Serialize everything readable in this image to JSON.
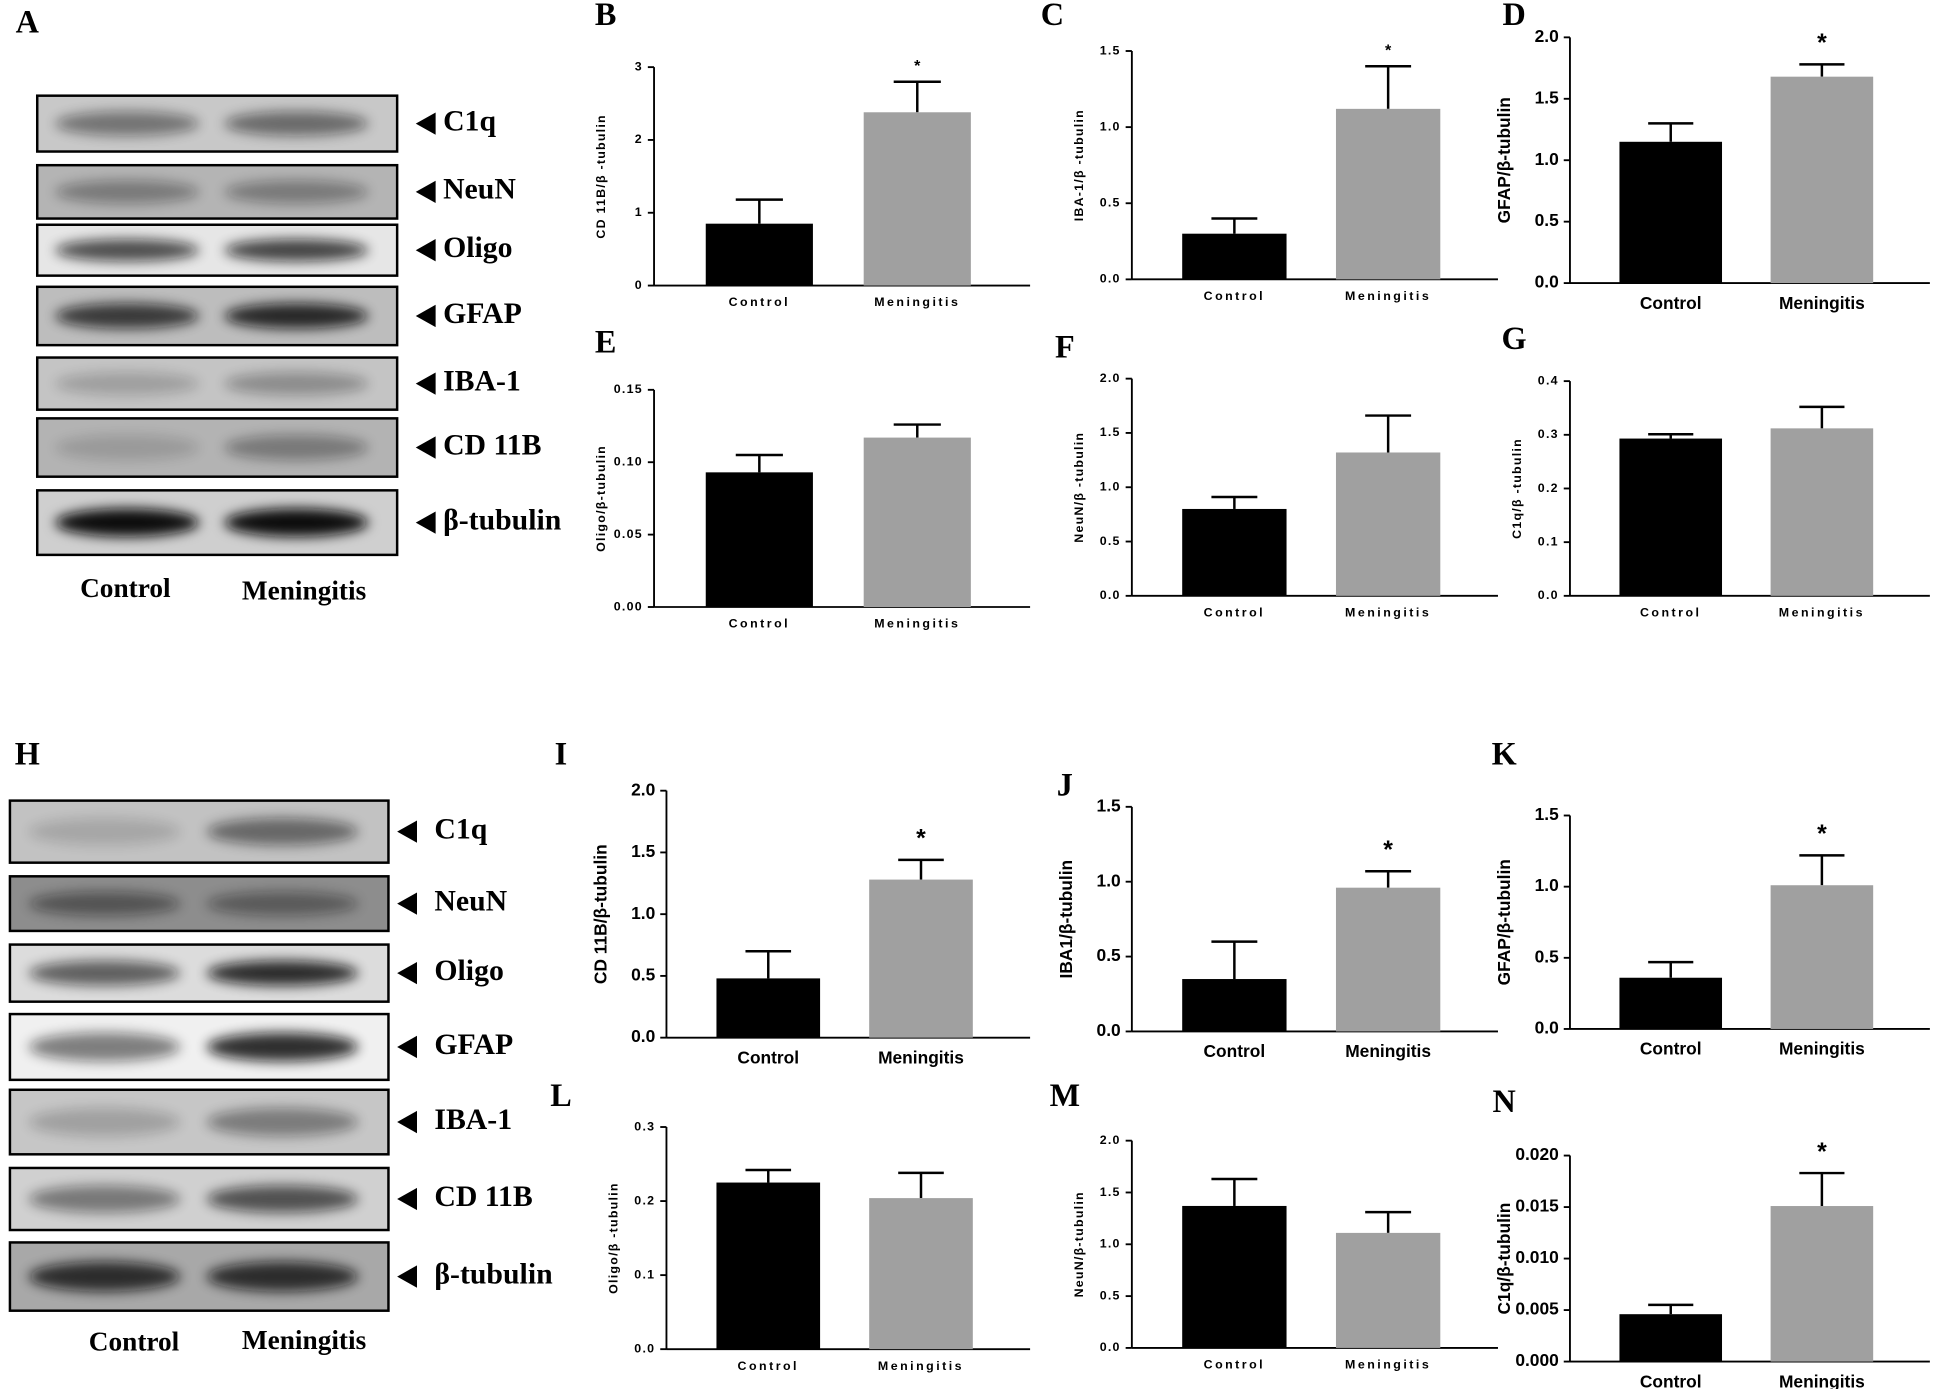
{
  "blots": [
    {
      "label": "A",
      "bands": [
        "C1q",
        "NeuN",
        "Oligo",
        "GFAP",
        "IBA-1",
        "CD 11B",
        "β-tubulin"
      ],
      "lanes": [
        "Control",
        "Meningitis"
      ]
    },
    {
      "label": "H",
      "bands": [
        "C1q",
        "NeuN",
        "Oligo",
        "GFAP",
        "IBA-1",
        "CD 11B",
        "β-tubulin"
      ],
      "lanes": [
        "Control",
        "Meningitis"
      ]
    }
  ],
  "chart_data": [
    {
      "type": "bar",
      "label": "B",
      "ylabel": "CD 11B/β -tubulin",
      "categories": [
        "Control",
        "Meningitis"
      ],
      "values": [
        0.85,
        2.38
      ],
      "errors": [
        0.33,
        0.42
      ],
      "value_annotations": [
        null,
        "*"
      ],
      "colors": [
        "#000000",
        "#a0a0a0"
      ],
      "ylim": [
        0,
        3
      ],
      "yticks": [
        0,
        1,
        2,
        3
      ]
    },
    {
      "type": "bar",
      "label": "C",
      "ylabel": "IBA-1/β -tubulin",
      "categories": [
        "Control",
        "Meningitis"
      ],
      "values": [
        0.3,
        1.12
      ],
      "errors": [
        0.1,
        0.28
      ],
      "value_annotations": [
        null,
        "*"
      ],
      "colors": [
        "#000000",
        "#a0a0a0"
      ],
      "ylim": [
        0,
        1.5
      ],
      "yticks": [
        {
          "value": 0,
          "label": "0.0"
        },
        0.5,
        {
          "value": 1,
          "label": "1.0"
        },
        1.5
      ]
    },
    {
      "type": "bar",
      "label": "D",
      "ylabel": "GFAP/β-tubulin",
      "categories": [
        "Control",
        "Meningitis"
      ],
      "values": [
        1.15,
        1.68
      ],
      "errors": [
        0.15,
        0.1
      ],
      "value_annotations": [
        null,
        "*"
      ],
      "colors": [
        "#000000",
        "#a0a0a0"
      ],
      "ylim": [
        0,
        2
      ],
      "yticks": [
        {
          "value": 0,
          "label": "0.0"
        },
        0.5,
        {
          "value": 1,
          "label": "1.0"
        },
        1.5,
        {
          "value": 2,
          "label": "2.0"
        }
      ]
    },
    {
      "type": "bar",
      "label": "E",
      "ylabel": "Oligo/β-tubulin",
      "categories": [
        "Control",
        "Meningitis"
      ],
      "values": [
        0.093,
        0.117
      ],
      "errors": [
        0.012,
        0.009
      ],
      "colors": [
        "#000000",
        "#a0a0a0"
      ],
      "ylim": [
        0,
        0.15
      ],
      "yticks": [
        {
          "value": 0,
          "label": "0.00"
        },
        0.05,
        {
          "value": 0.1,
          "label": "0.10"
        },
        0.15
      ]
    },
    {
      "type": "bar",
      "label": "F",
      "ylabel": "NeuN/β -tubulin",
      "categories": [
        "Control",
        "Meningitis"
      ],
      "values": [
        0.8,
        1.32
      ],
      "errors": [
        0.11,
        0.34
      ],
      "colors": [
        "#000000",
        "#a0a0a0"
      ],
      "ylim": [
        0,
        2
      ],
      "yticks": [
        {
          "value": 0,
          "label": "0.0"
        },
        0.5,
        {
          "value": 1,
          "label": "1.0"
        },
        1.5,
        {
          "value": 2,
          "label": "2.0"
        }
      ]
    },
    {
      "type": "bar",
      "label": "G",
      "ylabel": "C1q/β -tubulin",
      "categories": [
        "Control",
        "Meningitis"
      ],
      "values": [
        0.293,
        0.312
      ],
      "errors": [
        0.008,
        0.04
      ],
      "colors": [
        "#000000",
        "#a0a0a0"
      ],
      "ylim": [
        0,
        0.4
      ],
      "yticks": [
        {
          "value": 0,
          "label": "0.0"
        },
        0.1,
        0.2,
        0.3,
        0.4
      ]
    },
    {
      "type": "bar",
      "label": "I",
      "ylabel": "CD 11B/β-tubulin",
      "categories": [
        "Control",
        "Meningitis"
      ],
      "values": [
        0.48,
        1.28
      ],
      "errors": [
        0.22,
        0.16
      ],
      "value_annotations": [
        null,
        "*"
      ],
      "colors": [
        "#000000",
        "#a0a0a0"
      ],
      "ylim": [
        0,
        2
      ],
      "yticks": [
        {
          "value": 0,
          "label": "0.0"
        },
        0.5,
        {
          "value": 1,
          "label": "1.0"
        },
        1.5,
        {
          "value": 2,
          "label": "2.0"
        }
      ]
    },
    {
      "type": "bar",
      "label": "J",
      "ylabel": "IBA1/β-tubulin",
      "categories": [
        "Control",
        "Meningitis"
      ],
      "values": [
        0.35,
        0.96
      ],
      "errors": [
        0.25,
        0.11
      ],
      "value_annotations": [
        null,
        "*"
      ],
      "colors": [
        "#000000",
        "#a0a0a0"
      ],
      "ylim": [
        0,
        1.5
      ],
      "yticks": [
        {
          "value": 0,
          "label": "0.0"
        },
        0.5,
        {
          "value": 1,
          "label": "1.0"
        },
        1.5
      ]
    },
    {
      "type": "bar",
      "label": "K",
      "ylabel": "GFAP/β-tubulin",
      "categories": [
        "Control",
        "Meningitis"
      ],
      "values": [
        0.36,
        1.01
      ],
      "errors": [
        0.11,
        0.21
      ],
      "value_annotations": [
        null,
        "*"
      ],
      "colors": [
        "#000000",
        "#a0a0a0"
      ],
      "ylim": [
        0,
        1.5
      ],
      "yticks": [
        {
          "value": 0,
          "label": "0.0"
        },
        0.5,
        {
          "value": 1,
          "label": "1.0"
        },
        1.5
      ]
    },
    {
      "type": "bar",
      "label": "L",
      "ylabel": "Oligo/β -tubulin",
      "categories": [
        "Control",
        "Meningitis"
      ],
      "values": [
        0.225,
        0.204
      ],
      "errors": [
        0.017,
        0.034
      ],
      "colors": [
        "#000000",
        "#a0a0a0"
      ],
      "ylim": [
        0,
        0.3
      ],
      "yticks": [
        {
          "value": 0,
          "label": "0.0"
        },
        0.1,
        0.2,
        0.3
      ]
    },
    {
      "type": "bar",
      "label": "M",
      "ylabel": "NeuN/β-tubulin",
      "categories": [
        "Control",
        "Meningitis"
      ],
      "values": [
        1.37,
        1.11
      ],
      "errors": [
        0.26,
        0.2
      ],
      "colors": [
        "#000000",
        "#a0a0a0"
      ],
      "ylim": [
        0,
        2
      ],
      "yticks": [
        {
          "value": 0,
          "label": "0.0"
        },
        0.5,
        {
          "value": 1,
          "label": "1.0"
        },
        1.5,
        {
          "value": 2,
          "label": "2.0"
        }
      ]
    },
    {
      "type": "bar",
      "label": "N",
      "ylabel": "C1q/β-tubulin",
      "categories": [
        "Control",
        "Meningitis"
      ],
      "values": [
        0.0046,
        0.0151
      ],
      "errors": [
        0.0009,
        0.0032
      ],
      "value_annotations": [
        null,
        "*"
      ],
      "colors": [
        "#000000",
        "#a0a0a0"
      ],
      "ylim": [
        0,
        0.02
      ],
      "yticks": [
        {
          "value": 0,
          "label": "0.000"
        },
        0.005,
        {
          "value": 0.01,
          "label": "0.010"
        },
        0.015,
        {
          "value": 0.02,
          "label": "0.020"
        }
      ]
    }
  ]
}
